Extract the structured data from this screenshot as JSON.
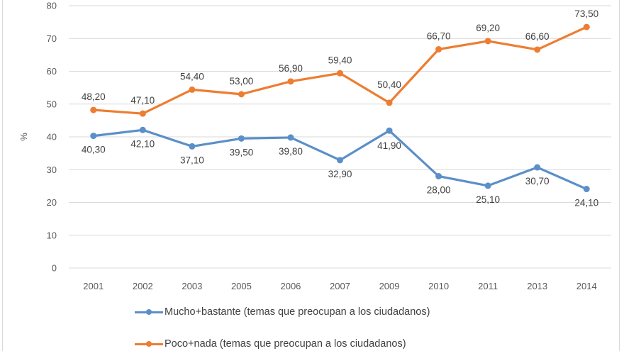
{
  "chart_data": {
    "type": "line",
    "title": "",
    "xlabel": "",
    "ylabel": "%",
    "ylim": [
      0,
      80
    ],
    "yticks": [
      "0",
      "10",
      "20",
      "30",
      "40",
      "50",
      "60",
      "70",
      "80"
    ],
    "grid": true,
    "legend_position": "bottom",
    "categories": [
      "2001",
      "2002",
      "2003",
      "2005",
      "2006",
      "2007",
      "2009",
      "2010",
      "2011",
      "2013",
      "2014"
    ],
    "series": [
      {
        "name": "Mucho+bastante (temas que preocupan a los ciudadanos)",
        "color": "#5b8fc7",
        "values": [
          40.3,
          42.1,
          37.1,
          39.5,
          39.8,
          32.9,
          41.9,
          28.0,
          25.1,
          30.7,
          24.1
        ],
        "labels": [
          "40,30",
          "42,10",
          "37,10",
          "39,50",
          "39,80",
          "32,90",
          "41,90",
          "28,00",
          "25,10",
          "30,70",
          "24,10"
        ]
      },
      {
        "name": "Poco+nada (temas que preocupan a los ciudadanos)",
        "color": "#ed7d31",
        "values": [
          48.2,
          47.1,
          54.4,
          53.0,
          56.9,
          59.4,
          50.4,
          66.7,
          69.2,
          66.6,
          73.5
        ],
        "labels": [
          "48,20",
          "47,10",
          "54,40",
          "53,00",
          "56,90",
          "59,40",
          "50,40",
          "66,70",
          "69,20",
          "66,60",
          "73,50"
        ]
      }
    ]
  }
}
